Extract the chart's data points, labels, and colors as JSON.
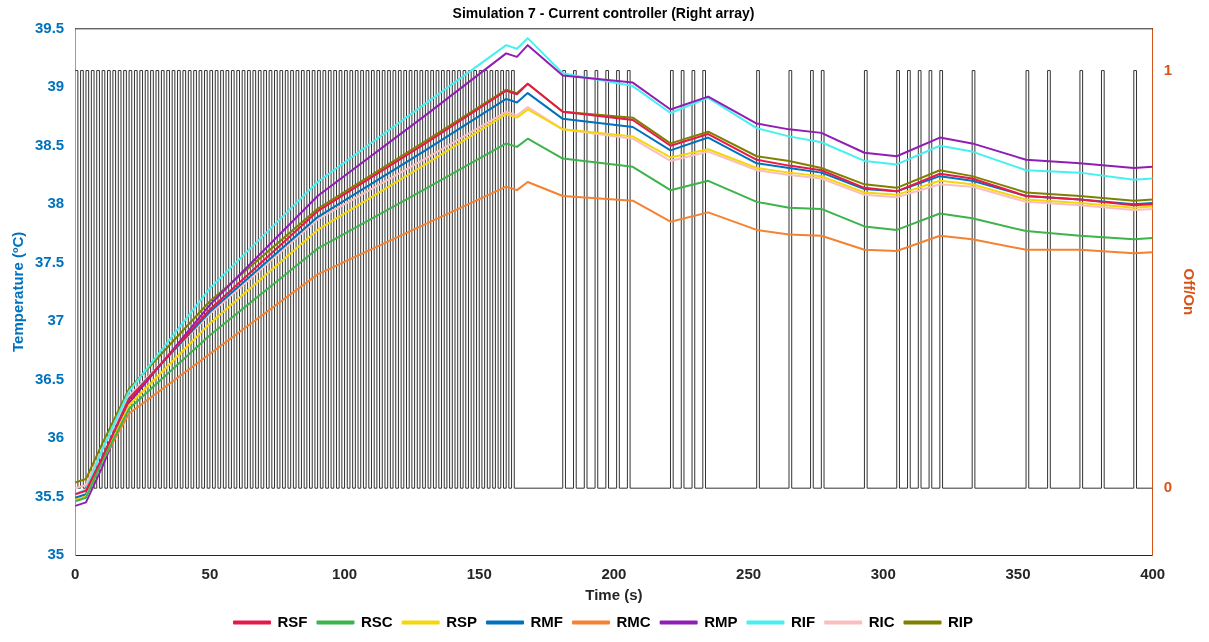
{
  "chart_data": {
    "type": "line",
    "title": "Simulation 7 - Current controller (Right array)",
    "xlabel": "Time (s)",
    "ylabel": "Temperature (ºC)",
    "y2label": "Off/On",
    "x": [
      0,
      4,
      10,
      20,
      50,
      90,
      130,
      160,
      164,
      168,
      181,
      207,
      221,
      235,
      253,
      265,
      277,
      293,
      305,
      321,
      333,
      353,
      373,
      393,
      400
    ],
    "series": [
      {
        "name": "RSF",
        "color": "#e6194b",
        "values": [
          35.52,
          35.55,
          35.83,
          36.33,
          37.1,
          37.94,
          38.52,
          38.97,
          38.94,
          39.03,
          38.79,
          38.72,
          38.5,
          38.6,
          38.38,
          38.33,
          38.29,
          38.14,
          38.11,
          38.26,
          38.22,
          38.07,
          38.04,
          37.99,
          38.0
        ]
      },
      {
        "name": "RSC",
        "color": "#3cb44b",
        "values": [
          35.46,
          35.49,
          35.8,
          36.25,
          36.88,
          37.62,
          38.13,
          38.52,
          38.49,
          38.56,
          38.39,
          38.32,
          38.12,
          38.2,
          38.02,
          37.97,
          37.96,
          37.81,
          37.78,
          37.92,
          37.88,
          37.77,
          37.73,
          37.7,
          37.71
        ]
      },
      {
        "name": "RSP",
        "color": "#f5d60a",
        "values": [
          35.47,
          35.5,
          35.8,
          36.28,
          36.98,
          37.78,
          38.34,
          38.77,
          38.74,
          38.81,
          38.64,
          38.58,
          38.4,
          38.47,
          38.31,
          38.27,
          38.24,
          38.1,
          38.08,
          38.2,
          38.17,
          38.04,
          38.01,
          37.97,
          37.98
        ]
      },
      {
        "name": "RMF",
        "color": "#0072bd",
        "values": [
          35.49,
          35.52,
          35.83,
          36.34,
          37.08,
          37.89,
          38.46,
          38.9,
          38.87,
          38.95,
          38.73,
          38.66,
          38.46,
          38.57,
          38.35,
          38.31,
          38.27,
          38.13,
          38.11,
          38.24,
          38.2,
          38.07,
          38.04,
          38.0,
          38.01
        ]
      },
      {
        "name": "RMC",
        "color": "#f58231",
        "values": [
          35.47,
          35.5,
          35.8,
          36.21,
          36.72,
          37.4,
          37.83,
          38.15,
          38.12,
          38.19,
          38.07,
          38.03,
          37.85,
          37.93,
          37.78,
          37.74,
          37.73,
          37.61,
          37.6,
          37.73,
          37.7,
          37.61,
          37.61,
          37.58,
          37.59
        ]
      },
      {
        "name": "RMP",
        "color": "#911eb4",
        "values": [
          35.42,
          35.45,
          35.75,
          36.3,
          37.14,
          38.07,
          38.76,
          39.29,
          39.26,
          39.36,
          39.1,
          39.04,
          38.81,
          38.92,
          38.69,
          38.64,
          38.61,
          38.44,
          38.41,
          38.57,
          38.52,
          38.38,
          38.35,
          38.31,
          38.32
        ]
      },
      {
        "name": "RIF",
        "color": "#46f0f0",
        "values": [
          35.52,
          35.56,
          35.9,
          36.4,
          37.28,
          38.19,
          38.86,
          39.36,
          39.33,
          39.42,
          39.12,
          39.01,
          38.78,
          38.91,
          38.65,
          38.58,
          38.53,
          38.37,
          38.34,
          38.5,
          38.45,
          38.29,
          38.27,
          38.21,
          38.22
        ]
      },
      {
        "name": "RIC",
        "color": "#fabebe",
        "values": [
          35.57,
          35.6,
          35.9,
          36.36,
          37.06,
          37.87,
          38.39,
          38.79,
          38.76,
          38.83,
          38.64,
          38.56,
          38.37,
          38.45,
          38.29,
          38.25,
          38.22,
          38.08,
          38.06,
          38.17,
          38.15,
          38.02,
          37.99,
          37.95,
          37.96
        ]
      },
      {
        "name": "RIP",
        "color": "#808000",
        "values": [
          35.62,
          35.65,
          35.95,
          36.42,
          37.17,
          37.96,
          38.54,
          38.98,
          38.95,
          39.03,
          38.79,
          38.74,
          38.52,
          38.62,
          38.41,
          38.37,
          38.31,
          38.17,
          38.14,
          38.29,
          38.24,
          38.1,
          38.07,
          38.03,
          38.04
        ]
      },
      {
        "type": "step",
        "axis": "y2",
        "color": "#333333",
        "x": [
          0,
          1,
          2,
          3,
          4,
          5,
          6,
          7,
          8,
          9,
          10,
          11,
          12,
          13,
          14,
          15,
          16,
          17,
          18,
          19,
          20,
          21,
          22,
          23,
          24,
          25,
          26,
          27,
          28,
          29,
          30,
          31,
          32,
          33,
          34,
          35,
          36,
          37,
          38,
          39,
          40,
          41,
          42,
          43,
          44,
          45,
          46,
          47,
          48,
          49,
          50,
          51,
          52,
          53,
          54,
          55,
          56,
          57,
          58,
          59,
          60,
          61,
          62,
          63,
          64,
          65,
          66,
          67,
          68,
          69,
          70,
          71,
          72,
          73,
          74,
          75,
          76,
          77,
          78,
          79,
          80,
          81,
          82,
          83,
          84,
          85,
          86,
          87,
          88,
          89,
          90,
          91,
          92,
          93,
          94,
          95,
          96,
          97,
          98,
          99,
          100,
          101,
          102,
          103,
          104,
          105,
          106,
          107,
          108,
          109,
          110,
          111,
          112,
          113,
          114,
          115,
          116,
          117,
          118,
          119,
          120,
          121,
          122,
          123,
          124,
          125,
          126,
          127,
          128,
          129,
          130,
          131,
          132,
          133,
          134,
          135,
          136,
          137,
          138,
          139,
          140,
          141,
          142,
          143,
          144,
          145,
          146,
          147,
          148,
          149,
          150,
          151,
          152,
          153,
          154,
          155,
          156,
          157,
          158,
          159,
          160,
          161,
          162,
          163,
          181,
          182,
          185,
          186,
          189,
          190,
          193,
          194,
          197,
          198,
          201,
          202,
          205,
          206,
          221,
          222,
          225,
          226,
          229,
          230,
          233,
          234,
          253,
          254,
          265,
          266,
          273,
          274,
          277,
          278,
          293,
          294,
          305,
          306,
          309,
          310,
          313,
          314,
          317,
          318,
          321,
          322,
          333,
          334,
          353,
          354,
          361,
          362,
          373,
          374,
          381,
          382,
          393,
          394,
          400
        ],
        "values": [
          1,
          0,
          1,
          0,
          1,
          0,
          1,
          0,
          1,
          0,
          1,
          0,
          1,
          0,
          1,
          0,
          1,
          0,
          1,
          0,
          1,
          0,
          1,
          0,
          1,
          0,
          1,
          0,
          1,
          0,
          1,
          0,
          1,
          0,
          1,
          0,
          1,
          0,
          1,
          0,
          1,
          0,
          1,
          0,
          1,
          0,
          1,
          0,
          1,
          0,
          1,
          0,
          1,
          0,
          1,
          0,
          1,
          0,
          1,
          0,
          1,
          0,
          1,
          0,
          1,
          0,
          1,
          0,
          1,
          0,
          1,
          0,
          1,
          0,
          1,
          0,
          1,
          0,
          1,
          0,
          1,
          0,
          1,
          0,
          1,
          0,
          1,
          0,
          1,
          0,
          1,
          0,
          1,
          0,
          1,
          0,
          1,
          0,
          1,
          0,
          1,
          0,
          1,
          0,
          1,
          0,
          1,
          0,
          1,
          0,
          1,
          0,
          1,
          0,
          1,
          0,
          1,
          0,
          1,
          0,
          1,
          0,
          1,
          0,
          1,
          0,
          1,
          0,
          1,
          0,
          1,
          0,
          1,
          0,
          1,
          0,
          1,
          0,
          1,
          0,
          1,
          0,
          1,
          0,
          1,
          0,
          1,
          0,
          1,
          0,
          1,
          0,
          1,
          0,
          1,
          0,
          1,
          0,
          1,
          0,
          1,
          0,
          1,
          0,
          1,
          0,
          1,
          0,
          1,
          0,
          1,
          0,
          1,
          0,
          1,
          0,
          1,
          0,
          1,
          0,
          1,
          0,
          1,
          0,
          1,
          0,
          1,
          0,
          1,
          0,
          1,
          0,
          1,
          0,
          1,
          0,
          1,
          0,
          1,
          0,
          1,
          0,
          1,
          0,
          1,
          0,
          1,
          0,
          1,
          0,
          1,
          0,
          1,
          0,
          1,
          0,
          1,
          0,
          0
        ]
      }
    ],
    "xlim": [
      0,
      400
    ],
    "xticks": [
      0,
      50,
      100,
      150,
      200,
      250,
      300,
      350,
      400
    ],
    "ylim": [
      35,
      39.5
    ],
    "yticks": [
      35,
      35.5,
      36,
      36.5,
      37,
      37.5,
      38,
      38.5,
      39,
      39.5
    ],
    "y2lim": [
      -0.16,
      1.1
    ],
    "y2ticks": [
      0,
      1
    ],
    "legend": "bottom",
    "marker": "none"
  }
}
